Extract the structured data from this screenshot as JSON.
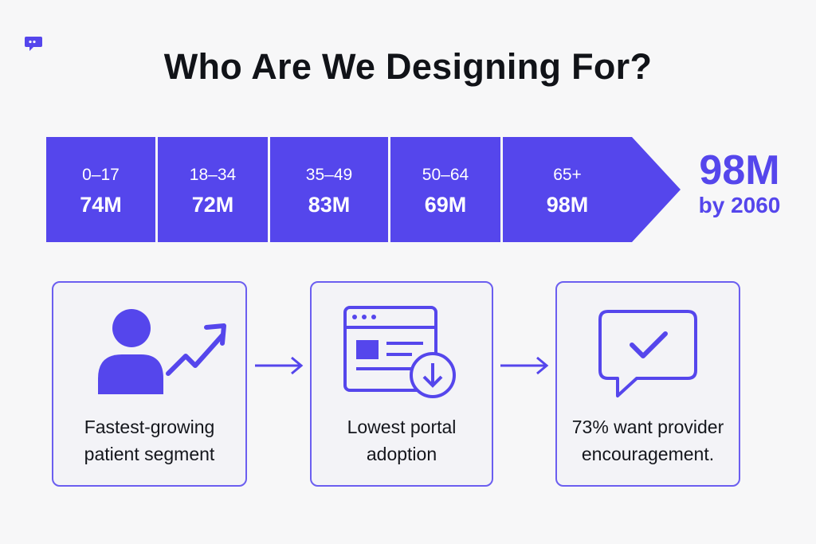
{
  "title": "Who Are We Designing For?",
  "accent_color": "#5546ec",
  "segments": [
    {
      "age": "0–17",
      "value": "74M"
    },
    {
      "age": "18–34",
      "value": "72M"
    },
    {
      "age": "35–49",
      "value": "83M"
    },
    {
      "age": "50–64",
      "value": "69M"
    },
    {
      "age": "65+",
      "value": "98M"
    }
  ],
  "projection": {
    "value": "98M",
    "label": "by 2060"
  },
  "cards": [
    {
      "icon": "person-growth-icon",
      "label_line1": "Fastest-growing",
      "label_line2": "patient segment"
    },
    {
      "icon": "portal-download-icon",
      "label_line1": "Lowest portal",
      "label_line2": "adoption"
    },
    {
      "icon": "chat-check-icon",
      "label_line1": "73% want provider",
      "label_line2": "encouragement."
    }
  ]
}
